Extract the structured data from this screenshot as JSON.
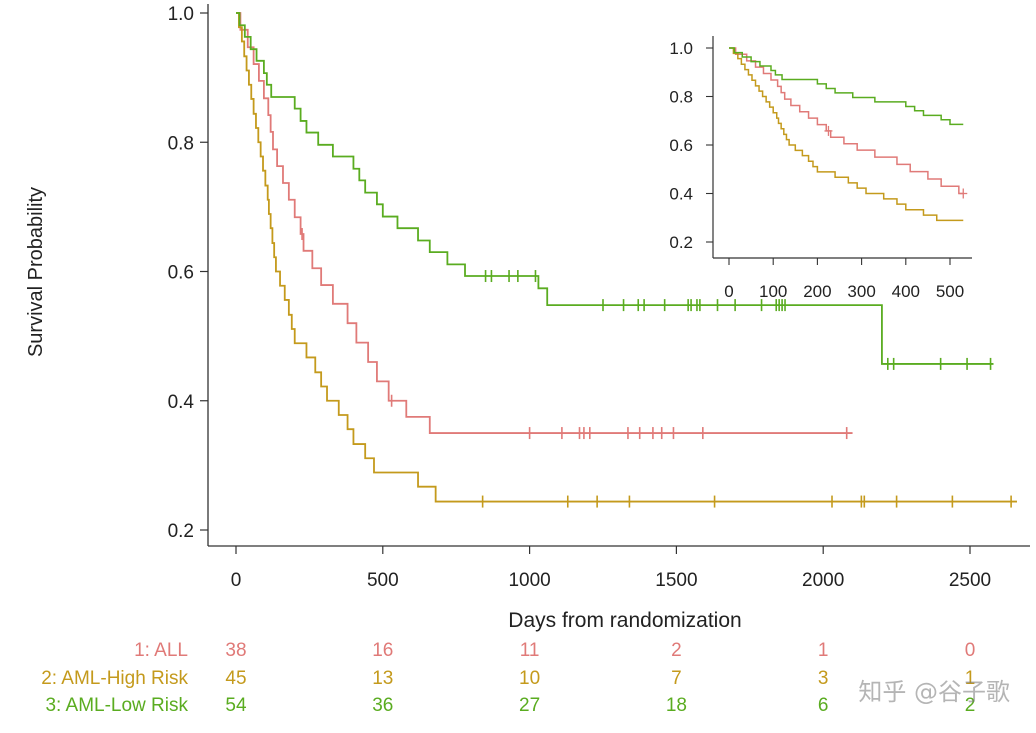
{
  "chart_data": {
    "type": "line",
    "title": "",
    "ylabel": "Survival Probability",
    "xlabel": "Days from randomization",
    "ylim": [
      0.18,
      1.0
    ],
    "xlim": [
      -90,
      2680
    ],
    "yticks": [
      0.2,
      0.4,
      0.6,
      0.8,
      1.0
    ],
    "ytick_labels": [
      "0.2",
      "0.4",
      "0.6",
      "0.8",
      "1.0"
    ],
    "xticks": [
      0,
      500,
      1000,
      1500,
      2000,
      2500
    ],
    "xtick_labels": [
      "0",
      "500",
      "1000",
      "1500",
      "2000",
      "2500"
    ],
    "series": [
      {
        "name": "1: ALL",
        "color": "#e07a78",
        "steps": [
          [
            0,
            1.0
          ],
          [
            15,
            0.974
          ],
          [
            40,
            0.947
          ],
          [
            60,
            0.921
          ],
          [
            78,
            0.895
          ],
          [
            95,
            0.868
          ],
          [
            110,
            0.842
          ],
          [
            118,
            0.816
          ],
          [
            126,
            0.789
          ],
          [
            140,
            0.763
          ],
          [
            160,
            0.737
          ],
          [
            180,
            0.711
          ],
          [
            200,
            0.684
          ],
          [
            220,
            0.658
          ],
          [
            230,
            0.632
          ],
          [
            260,
            0.605
          ],
          [
            290,
            0.579
          ],
          [
            330,
            0.55
          ],
          [
            380,
            0.52
          ],
          [
            410,
            0.49
          ],
          [
            450,
            0.46
          ],
          [
            480,
            0.43
          ],
          [
            520,
            0.4
          ],
          [
            580,
            0.375
          ],
          [
            660,
            0.35
          ],
          [
            2100,
            0.35
          ]
        ],
        "censor": [
          225,
          530,
          1000,
          1110,
          1170,
          1185,
          1205,
          1335,
          1375,
          1420,
          1450,
          1490,
          1590,
          2080
        ]
      },
      {
        "name": "2: AML-High Risk",
        "color": "#c49a1c",
        "steps": [
          [
            0,
            1.0
          ],
          [
            10,
            0.978
          ],
          [
            20,
            0.956
          ],
          [
            28,
            0.933
          ],
          [
            36,
            0.911
          ],
          [
            44,
            0.889
          ],
          [
            52,
            0.867
          ],
          [
            60,
            0.844
          ],
          [
            68,
            0.822
          ],
          [
            76,
            0.8
          ],
          [
            84,
            0.778
          ],
          [
            92,
            0.756
          ],
          [
            100,
            0.733
          ],
          [
            108,
            0.711
          ],
          [
            112,
            0.689
          ],
          [
            118,
            0.667
          ],
          [
            124,
            0.644
          ],
          [
            130,
            0.622
          ],
          [
            136,
            0.6
          ],
          [
            150,
            0.578
          ],
          [
            166,
            0.556
          ],
          [
            180,
            0.533
          ],
          [
            190,
            0.511
          ],
          [
            200,
            0.489
          ],
          [
            240,
            0.467
          ],
          [
            270,
            0.444
          ],
          [
            290,
            0.422
          ],
          [
            310,
            0.4
          ],
          [
            350,
            0.378
          ],
          [
            380,
            0.356
          ],
          [
            400,
            0.333
          ],
          [
            440,
            0.311
          ],
          [
            470,
            0.289
          ],
          [
            620,
            0.267
          ],
          [
            680,
            0.244
          ],
          [
            2660,
            0.244
          ]
        ],
        "censor": [
          840,
          1130,
          1230,
          1340,
          1630,
          2030,
          2130,
          2140,
          2250,
          2440,
          2640
        ]
      },
      {
        "name": "3: AML-Low Risk",
        "color": "#5aac20",
        "steps": [
          [
            0,
            1.0
          ],
          [
            12,
            0.981
          ],
          [
            30,
            0.963
          ],
          [
            50,
            0.944
          ],
          [
            70,
            0.926
          ],
          [
            95,
            0.907
          ],
          [
            105,
            0.889
          ],
          [
            120,
            0.87
          ],
          [
            200,
            0.852
          ],
          [
            220,
            0.833
          ],
          [
            240,
            0.815
          ],
          [
            280,
            0.796
          ],
          [
            330,
            0.778
          ],
          [
            400,
            0.759
          ],
          [
            420,
            0.741
          ],
          [
            440,
            0.722
          ],
          [
            480,
            0.704
          ],
          [
            500,
            0.685
          ],
          [
            550,
            0.667
          ],
          [
            620,
            0.648
          ],
          [
            660,
            0.63
          ],
          [
            720,
            0.611
          ],
          [
            780,
            0.593
          ],
          [
            1030,
            0.574
          ],
          [
            1060,
            0.548
          ],
          [
            2200,
            0.457
          ],
          [
            2580,
            0.457
          ]
        ],
        "censor": [
          850,
          870,
          930,
          960,
          1020,
          1250,
          1320,
          1370,
          1390,
          1460,
          1540,
          1550,
          1570,
          1580,
          1640,
          1700,
          1790,
          1840,
          1850,
          1860,
          1870,
          2220,
          2240,
          2400,
          2490,
          2570
        ]
      }
    ],
    "inset": {
      "yticks": [
        0.2,
        0.4,
        0.6,
        0.8,
        1.0
      ],
      "ytick_labels": [
        "0.2",
        "0.4",
        "0.6",
        "0.8",
        "1.0"
      ],
      "xticks": [
        0,
        100,
        200,
        300,
        400,
        500
      ],
      "xtick_labels": [
        "0",
        "100",
        "200",
        "300",
        "400",
        "500"
      ],
      "xlim": [
        -35,
        535
      ],
      "ylim": [
        0.13,
        1.05
      ]
    },
    "risk_table": {
      "rows": [
        {
          "label": "1: ALL",
          "counts": [
            "38",
            "16",
            "11",
            "2",
            "1",
            "0"
          ]
        },
        {
          "label": "2: AML-High Risk",
          "counts": [
            "45",
            "13",
            "10",
            "7",
            "3",
            "1"
          ]
        },
        {
          "label": "3: AML-Low Risk",
          "counts": [
            "54",
            "36",
            "27",
            "18",
            "6",
            "2"
          ]
        }
      ]
    }
  },
  "watermark": "知乎 @谷子歌"
}
